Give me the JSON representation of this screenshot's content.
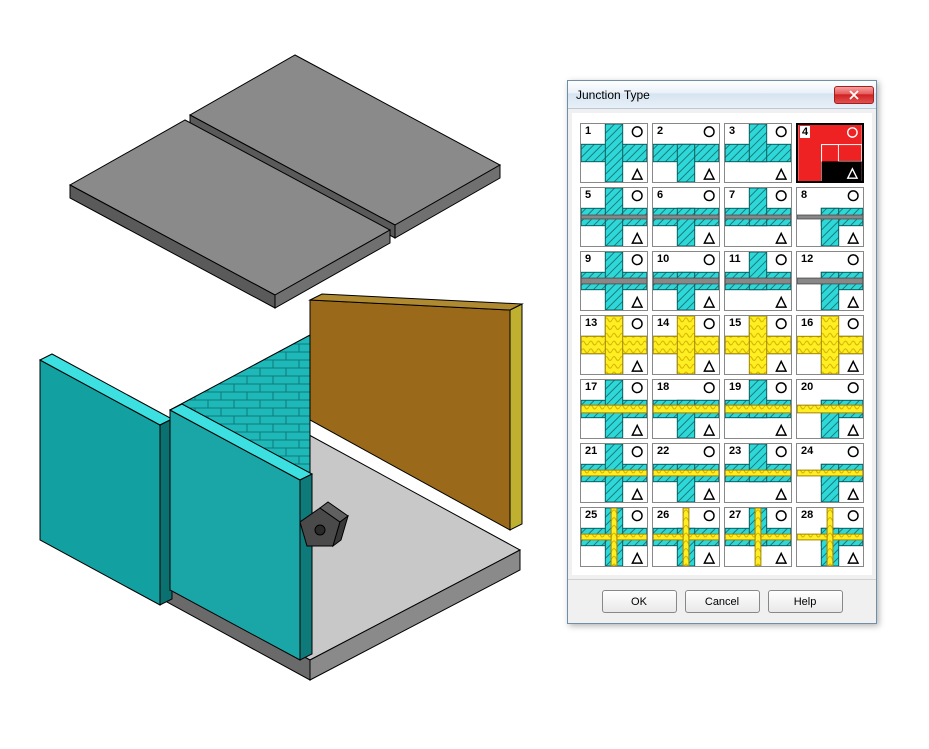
{
  "dialog": {
    "title": "Junction Type",
    "buttons": {
      "ok": "OK",
      "cancel": "Cancel",
      "help": "Help"
    },
    "selected_index": 4,
    "selection_colors": {
      "bg": "#ee2222",
      "accent": "#000000",
      "stroke": "#ffffff"
    },
    "junction_colors": {
      "wall": "#2fd8d8",
      "wall_stroke": "#1a7a7a",
      "insulation": "#ffee22",
      "insulation_stroke": "#d0b000",
      "slab": "#888888",
      "bg": "#ffffff"
    },
    "types": [
      {
        "n": 1,
        "style": "cross",
        "ins": "none"
      },
      {
        "n": 2,
        "style": "tee",
        "ins": "none"
      },
      {
        "n": 3,
        "style": "tee2",
        "ins": "none"
      },
      {
        "n": 4,
        "style": "corner",
        "ins": "none",
        "selected": true
      },
      {
        "n": 5,
        "style": "cross",
        "ins": "thin"
      },
      {
        "n": 6,
        "style": "tee",
        "ins": "thin"
      },
      {
        "n": 7,
        "style": "tee2",
        "ins": "thin"
      },
      {
        "n": 8,
        "style": "corner",
        "ins": "thin"
      },
      {
        "n": 9,
        "style": "cross",
        "ins": "slab"
      },
      {
        "n": 10,
        "style": "tee",
        "ins": "slab"
      },
      {
        "n": 11,
        "style": "tee2",
        "ins": "slab"
      },
      {
        "n": 12,
        "style": "corner",
        "ins": "slab"
      },
      {
        "n": 13,
        "style": "cross",
        "ins": "full"
      },
      {
        "n": 14,
        "style": "tee",
        "ins": "full"
      },
      {
        "n": 15,
        "style": "tee2",
        "ins": "full"
      },
      {
        "n": 16,
        "style": "corner",
        "ins": "full"
      },
      {
        "n": 17,
        "style": "cross",
        "ins": "band"
      },
      {
        "n": 18,
        "style": "tee",
        "ins": "band"
      },
      {
        "n": 19,
        "style": "tee2",
        "ins": "band"
      },
      {
        "n": 20,
        "style": "corner",
        "ins": "band"
      },
      {
        "n": 21,
        "style": "cross",
        "ins": "strip"
      },
      {
        "n": 22,
        "style": "tee",
        "ins": "strip"
      },
      {
        "n": 23,
        "style": "tee2",
        "ins": "strip"
      },
      {
        "n": 24,
        "style": "corner",
        "ins": "strip"
      },
      {
        "n": 25,
        "style": "cross",
        "ins": "double"
      },
      {
        "n": 26,
        "style": "tee",
        "ins": "double"
      },
      {
        "n": 27,
        "style": "tee2",
        "ins": "double"
      },
      {
        "n": 28,
        "style": "corner",
        "ins": "double"
      }
    ]
  },
  "scene": {
    "colors": {
      "roof_top": "#8a8a8a",
      "roof_side": "#6a6a6a",
      "floor_top": "#c8c8c8",
      "floor_side": "#8a8a8a",
      "wall_teal": "#1aa6a6",
      "wall_teal_light": "#2fd8d8",
      "wall_teal_dark": "#0f7a7a",
      "wall_brick": "#1fb8b8",
      "wall_brown": "#9a6a1a",
      "wall_brown_dark": "#6a4510",
      "wall_olive": "#c0b030",
      "receiver": "#505050",
      "edge": "#000000"
    }
  }
}
